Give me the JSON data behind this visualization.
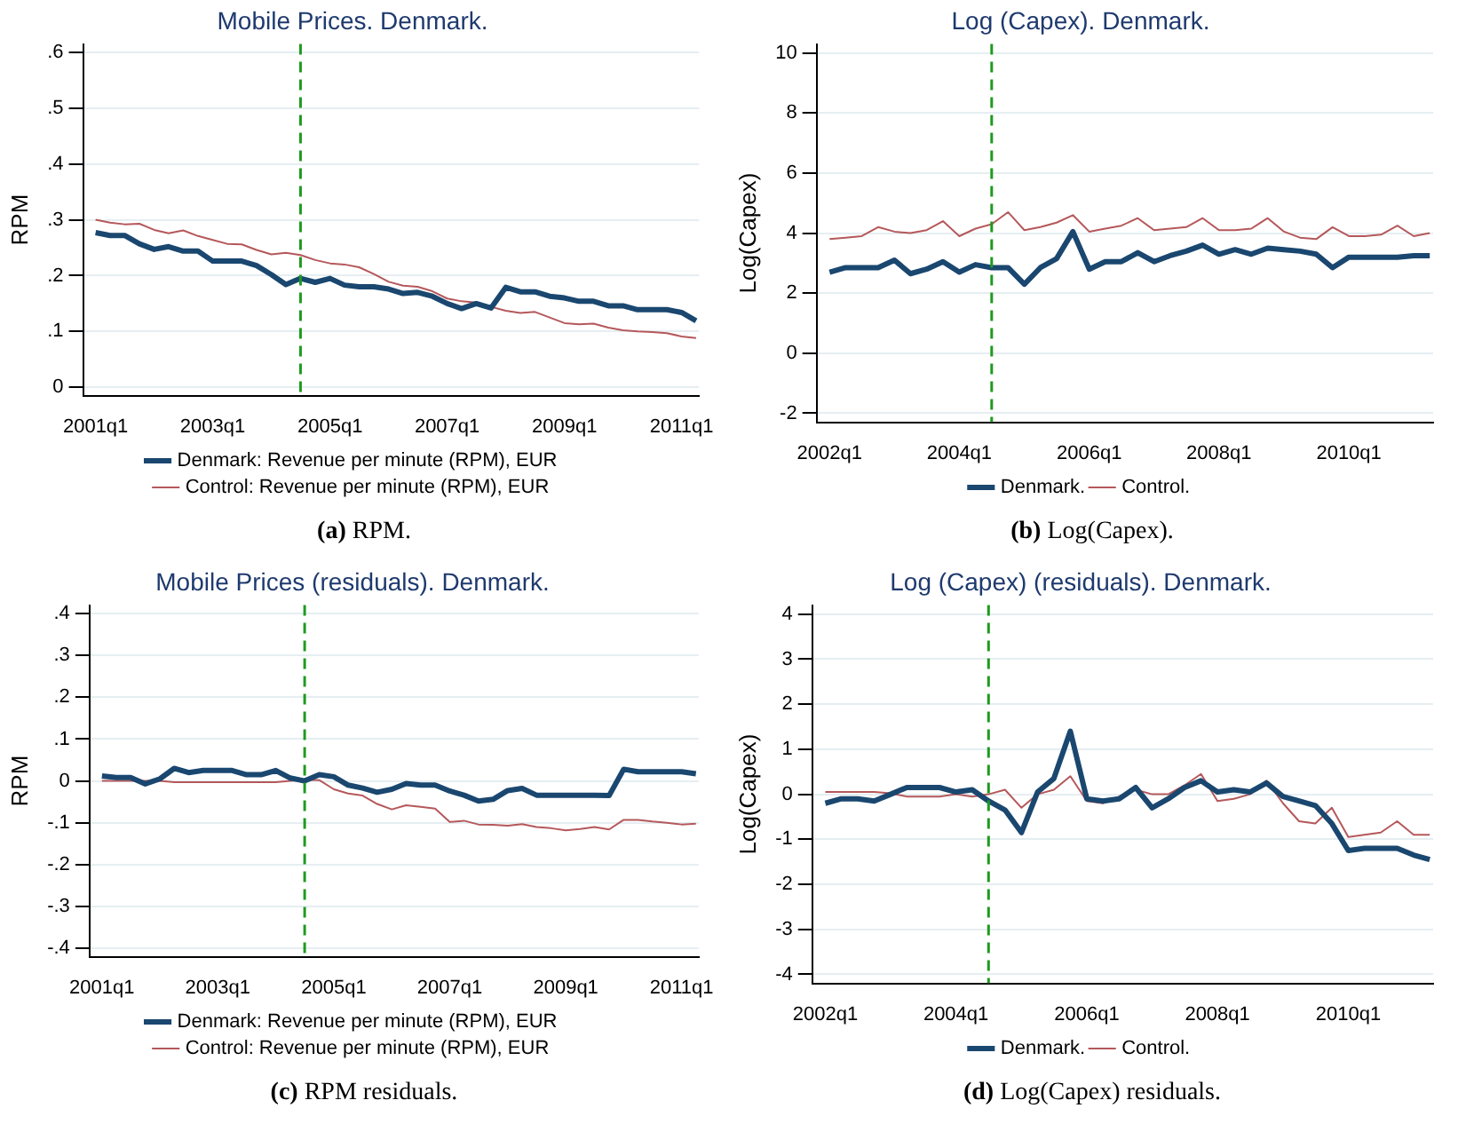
{
  "chart_data": [
    {
      "type": "line",
      "title": "Mobile Prices. Denmark.",
      "ylabel": "RPM",
      "annotations": [
        "(a) RPM."
      ],
      "grid": "y",
      "legend": "bottom",
      "marker": "none",
      "line_style": "solid",
      "x": [
        "2001-01",
        "2001-04",
        "2001-07",
        "2001-10",
        "2002-01",
        "2002-04",
        "2002-07",
        "2002-10",
        "2003-01",
        "2003-04",
        "2003-07",
        "2003-10",
        "2004-01",
        "2004-04",
        "2004-07",
        "2004-10",
        "2005-01",
        "2005-04",
        "2005-07",
        "2005-10",
        "2006-01",
        "2006-04",
        "2006-07",
        "2006-10",
        "2007-01",
        "2007-04",
        "2007-07",
        "2007-10",
        "2008-01",
        "2008-04",
        "2008-07",
        "2008-10",
        "2009-01",
        "2009-04",
        "2009-07",
        "2009-10",
        "2010-01",
        "2010-04",
        "2010-07",
        "2010-10",
        "2011-01",
        "2011-04"
      ],
      "xlim": [
        "2000-10-15",
        "2011-04-20"
      ],
      "xticks": [
        {
          "value": "2001-01",
          "label": "2001q1"
        },
        {
          "value": "2003-01",
          "label": "2003q1"
        },
        {
          "value": "2005-01",
          "label": "2005q1"
        },
        {
          "value": "2007-01",
          "label": "2007q1"
        },
        {
          "value": "2009-01",
          "label": "2009q1"
        },
        {
          "value": "2011-01",
          "label": "2011q1"
        }
      ],
      "ylim": [
        -0.015,
        0.615
      ],
      "yticks": [
        0,
        {
          "value": 0.1,
          "label": ".1"
        },
        {
          "value": 0.2,
          "label": ".2"
        },
        {
          "value": 0.3,
          "label": ".3"
        },
        {
          "value": 0.4,
          "label": ".4"
        },
        {
          "value": 0.5,
          "label": ".5"
        },
        {
          "value": 0.6,
          "label": ".6"
        }
      ],
      "ref_lines": [
        {
          "axis": "x",
          "value": "2004-07",
          "color": "#1f9a1f",
          "line_style": "dashed"
        }
      ],
      "series": [
        {
          "name": "Denmark: Revenue per minute (RPM), EUR",
          "color": "#1a476f",
          "values": [
            0.277,
            0.272,
            0.272,
            0.257,
            0.247,
            0.252,
            0.244,
            0.244,
            0.226,
            0.226,
            0.226,
            0.218,
            0.202,
            0.184,
            0.195,
            0.188,
            0.195,
            0.183,
            0.18,
            0.18,
            0.176,
            0.168,
            0.17,
            0.163,
            0.15,
            0.141,
            0.15,
            0.142,
            0.179,
            0.171,
            0.171,
            0.163,
            0.16,
            0.154,
            0.154,
            0.146,
            0.146,
            0.139,
            0.139,
            0.139,
            0.134,
            0.119
          ]
        },
        {
          "name": "Control: Revenue per minute (RPM), EUR",
          "color": "#b5585b",
          "values": [
            0.3,
            0.295,
            0.292,
            0.293,
            0.282,
            0.276,
            0.281,
            0.271,
            0.264,
            0.257,
            0.256,
            0.246,
            0.238,
            0.241,
            0.237,
            0.228,
            0.222,
            0.22,
            0.215,
            0.203,
            0.189,
            0.182,
            0.18,
            0.172,
            0.159,
            0.154,
            0.152,
            0.144,
            0.137,
            0.133,
            0.135,
            0.125,
            0.115,
            0.113,
            0.114,
            0.107,
            0.102,
            0.1,
            0.099,
            0.097,
            0.091,
            0.088
          ]
        }
      ]
    },
    {
      "type": "line",
      "title": "Log (Capex). Denmark.",
      "ylabel": "Log(Capex)",
      "annotations": [
        "(b) Log(Capex)."
      ],
      "grid": "y",
      "legend": "bottom",
      "marker": "none",
      "line_style": "solid",
      "x": [
        "2002-01",
        "2002-04",
        "2002-07",
        "2002-10",
        "2003-01",
        "2003-04",
        "2003-07",
        "2003-10",
        "2004-01",
        "2004-04",
        "2004-07",
        "2004-10",
        "2005-01",
        "2005-04",
        "2005-07",
        "2005-10",
        "2006-01",
        "2006-04",
        "2006-07",
        "2006-10",
        "2007-01",
        "2007-04",
        "2007-07",
        "2007-10",
        "2008-01",
        "2008-04",
        "2008-07",
        "2008-10",
        "2009-01",
        "2009-04",
        "2009-07",
        "2009-10",
        "2010-01",
        "2010-04",
        "2010-07",
        "2010-10",
        "2011-01",
        "2011-04"
      ],
      "xlim": [
        "2001-10-20",
        "2011-04-20"
      ],
      "xticks": [
        {
          "value": "2002-01",
          "label": "2002q1"
        },
        {
          "value": "2004-01",
          "label": "2004q1"
        },
        {
          "value": "2006-01",
          "label": "2006q1"
        },
        {
          "value": "2008-01",
          "label": "2008q1"
        },
        {
          "value": "2010-01",
          "label": "2010q1"
        }
      ],
      "ylim": [
        -2.3,
        10.3
      ],
      "yticks": [
        -2,
        0,
        2,
        4,
        6,
        8,
        10
      ],
      "ref_lines": [
        {
          "axis": "x",
          "value": "2004-07",
          "color": "#1f9a1f",
          "line_style": "dashed"
        }
      ],
      "series": [
        {
          "name": "Denmark.",
          "color": "#1a476f",
          "values": [
            2.7,
            2.85,
            2.85,
            2.85,
            3.1,
            2.65,
            2.8,
            3.05,
            2.7,
            2.95,
            2.85,
            2.85,
            2.3,
            2.85,
            3.15,
            4.05,
            2.8,
            3.05,
            3.05,
            3.35,
            3.05,
            3.25,
            3.4,
            3.6,
            3.3,
            3.45,
            3.3,
            3.5,
            3.45,
            3.4,
            3.3,
            2.85,
            3.2,
            3.2,
            3.2,
            3.2,
            3.25,
            3.25
          ]
        },
        {
          "name": "Control.",
          "color": "#b5585b",
          "values": [
            3.8,
            3.85,
            3.9,
            4.2,
            4.05,
            4.0,
            4.1,
            4.4,
            3.9,
            4.15,
            4.3,
            4.7,
            4.1,
            4.2,
            4.35,
            4.6,
            4.05,
            4.15,
            4.25,
            4.5,
            4.1,
            4.15,
            4.2,
            4.5,
            4.1,
            4.1,
            4.15,
            4.5,
            4.05,
            3.85,
            3.8,
            4.2,
            3.9,
            3.9,
            3.95,
            4.25,
            3.9,
            4.0
          ]
        }
      ]
    },
    {
      "type": "line",
      "title": "Mobile Prices (residuals). Denmark.",
      "ylabel": "RPM",
      "annotations": [
        "(c) RPM residuals."
      ],
      "grid": "y",
      "legend": "bottom",
      "marker": "none",
      "line_style": "solid",
      "x": [
        "2001-01",
        "2001-04",
        "2001-07",
        "2001-10",
        "2002-01",
        "2002-04",
        "2002-07",
        "2002-10",
        "2003-01",
        "2003-04",
        "2003-07",
        "2003-10",
        "2004-01",
        "2004-04",
        "2004-07",
        "2004-10",
        "2005-01",
        "2005-04",
        "2005-07",
        "2005-10",
        "2006-01",
        "2006-04",
        "2006-07",
        "2006-10",
        "2007-01",
        "2007-04",
        "2007-07",
        "2007-10",
        "2008-01",
        "2008-04",
        "2008-07",
        "2008-10",
        "2009-01",
        "2009-04",
        "2009-07",
        "2009-10",
        "2010-01",
        "2010-04",
        "2010-07",
        "2010-10",
        "2011-01",
        "2011-04"
      ],
      "xlim": [
        "2000-10-15",
        "2011-04-20"
      ],
      "xticks": [
        {
          "value": "2001-01",
          "label": "2001q1"
        },
        {
          "value": "2003-01",
          "label": "2003q1"
        },
        {
          "value": "2005-01",
          "label": "2005q1"
        },
        {
          "value": "2007-01",
          "label": "2007q1"
        },
        {
          "value": "2009-01",
          "label": "2009q1"
        },
        {
          "value": "2011-01",
          "label": "2011q1"
        }
      ],
      "ylim": [
        -0.42,
        0.42
      ],
      "yticks": [
        {
          "value": -0.4,
          "label": "-.4"
        },
        {
          "value": -0.3,
          "label": "-.3"
        },
        {
          "value": -0.2,
          "label": "-.2"
        },
        {
          "value": -0.1,
          "label": "-.1"
        },
        0,
        {
          "value": 0.1,
          "label": ".1"
        },
        {
          "value": 0.2,
          "label": ".2"
        },
        {
          "value": 0.3,
          "label": ".3"
        },
        {
          "value": 0.4,
          "label": ".4"
        }
      ],
      "ref_lines": [
        {
          "axis": "x",
          "value": "2004-07",
          "color": "#1f9a1f",
          "line_style": "dashed"
        }
      ],
      "series": [
        {
          "name": "Denmark: Revenue per minute (RPM), EUR",
          "color": "#1a476f",
          "values": [
            0.012,
            0.008,
            0.008,
            -0.007,
            0.005,
            0.03,
            0.02,
            0.025,
            0.025,
            0.025,
            0.015,
            0.015,
            0.025,
            0.007,
            0,
            0.015,
            0.01,
            -0.01,
            -0.017,
            -0.027,
            -0.02,
            -0.006,
            -0.01,
            -0.01,
            -0.024,
            -0.034,
            -0.048,
            -0.044,
            -0.023,
            -0.018,
            -0.034,
            -0.034,
            -0.034,
            -0.034,
            -0.034,
            -0.035,
            0.028,
            0.022,
            0.022,
            0.022,
            0.022,
            0.017
          ]
        },
        {
          "name": "Control: Revenue per minute (RPM), EUR",
          "color": "#b5585b",
          "values": [
            0,
            0,
            0,
            0,
            0,
            -0.003,
            -0.003,
            -0.003,
            -0.003,
            -0.003,
            -0.003,
            -0.003,
            -0.003,
            0,
            0.003,
            0.002,
            -0.02,
            -0.03,
            -0.035,
            -0.055,
            -0.068,
            -0.058,
            -0.062,
            -0.066,
            -0.098,
            -0.095,
            -0.104,
            -0.105,
            -0.107,
            -0.103,
            -0.11,
            -0.113,
            -0.118,
            -0.115,
            -0.11,
            -0.116,
            -0.093,
            -0.093,
            -0.097,
            -0.1,
            -0.104,
            -0.102
          ]
        }
      ]
    },
    {
      "type": "line",
      "title": "Log (Capex) (residuals). Denmark.",
      "ylabel": "Log(Capex)",
      "annotations": [
        "(d) Log(Capex) residuals."
      ],
      "grid": "y",
      "legend": "bottom",
      "marker": "none",
      "line_style": "solid",
      "x": [
        "2002-01",
        "2002-04",
        "2002-07",
        "2002-10",
        "2003-01",
        "2003-04",
        "2003-07",
        "2003-10",
        "2004-01",
        "2004-04",
        "2004-07",
        "2004-10",
        "2005-01",
        "2005-04",
        "2005-07",
        "2005-10",
        "2006-01",
        "2006-04",
        "2006-07",
        "2006-10",
        "2007-01",
        "2007-04",
        "2007-07",
        "2007-10",
        "2008-01",
        "2008-04",
        "2008-07",
        "2008-10",
        "2009-01",
        "2009-04",
        "2009-07",
        "2009-10",
        "2010-01",
        "2010-04",
        "2010-07",
        "2010-10",
        "2011-01",
        "2011-04"
      ],
      "xlim": [
        "2001-10-20",
        "2011-04-20"
      ],
      "xticks": [
        {
          "value": "2002-01",
          "label": "2002q1"
        },
        {
          "value": "2004-01",
          "label": "2004q1"
        },
        {
          "value": "2006-01",
          "label": "2006q1"
        },
        {
          "value": "2008-01",
          "label": "2008q1"
        },
        {
          "value": "2010-01",
          "label": "2010q1"
        }
      ],
      "ylim": [
        -4.2,
        4.2
      ],
      "yticks": [
        -4,
        -3,
        -2,
        -1,
        0,
        1,
        2,
        3,
        4
      ],
      "ref_lines": [
        {
          "axis": "x",
          "value": "2004-07",
          "color": "#1f9a1f",
          "line_style": "dashed"
        }
      ],
      "series": [
        {
          "name": "Denmark.",
          "color": "#1a476f",
          "values": [
            -0.2,
            -0.1,
            -0.1,
            -0.15,
            0,
            0.15,
            0.15,
            0.15,
            0.05,
            0.1,
            -0.15,
            -0.35,
            -0.85,
            0.05,
            0.35,
            1.4,
            -0.1,
            -0.15,
            -0.1,
            0.15,
            -0.3,
            -0.1,
            0.15,
            0.3,
            0.05,
            0.1,
            0.05,
            0.25,
            -0.05,
            -0.15,
            -0.25,
            -0.65,
            -1.25,
            -1.2,
            -1.2,
            -1.2,
            -1.35,
            -1.45
          ]
        },
        {
          "name": "Control.",
          "color": "#b5585b",
          "values": [
            0.05,
            0.05,
            0.05,
            0.05,
            0.02,
            -0.05,
            -0.05,
            -0.05,
            0,
            -0.05,
            0,
            0.1,
            -0.3,
            0,
            0.1,
            0.4,
            -0.15,
            -0.2,
            -0.05,
            0.1,
            0,
            0,
            0.2,
            0.45,
            -0.15,
            -0.1,
            0,
            0.3,
            -0.2,
            -0.6,
            -0.65,
            -0.3,
            -0.95,
            -0.9,
            -0.85,
            -0.6,
            -0.9,
            -0.9
          ]
        }
      ]
    }
  ]
}
